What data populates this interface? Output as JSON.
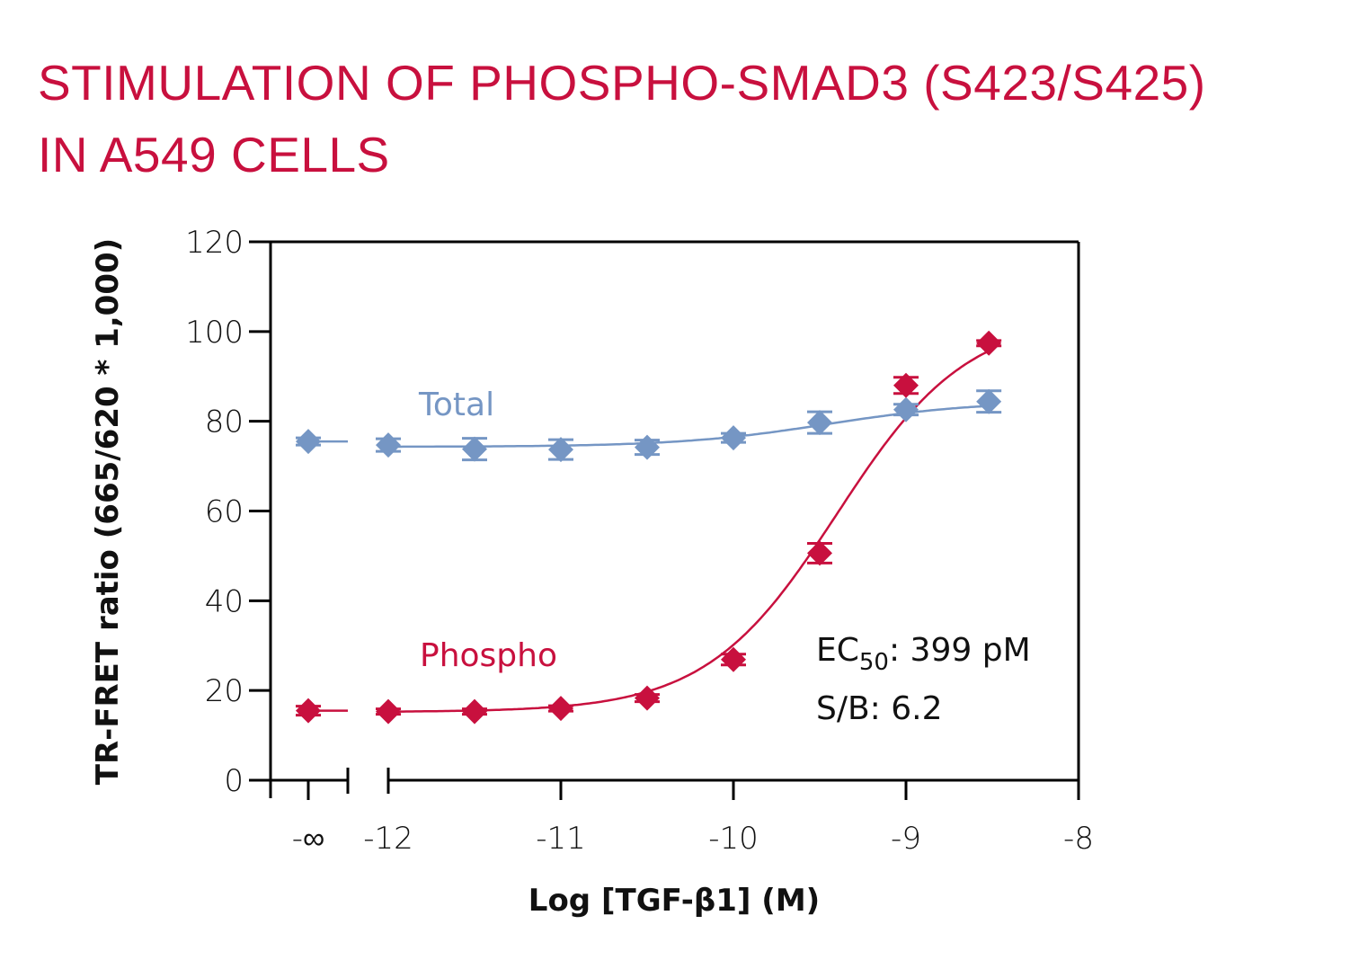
{
  "title": {
    "line1": "STIMULATION OF PHOSPHO-SMAD3 (S423/S425)",
    "line2": "IN A549 CELLS"
  },
  "colors": {
    "title": "#c8103e",
    "phospho": "#c8103e",
    "total": "#7596c4",
    "axis": "#000000"
  },
  "chart_data": {
    "type": "scatter",
    "title": "STIMULATION OF PHOSPHO-SMAD3 (S423/S425) IN A549 CELLS",
    "xlabel": "Log [TGF-β1] (M)",
    "ylabel": "TR-FRET ratio (665/620 * 1,000)",
    "xlim": [
      -12,
      -8
    ],
    "ylim": [
      0,
      120
    ],
    "x_ticks": [
      "-12",
      "-11",
      "-10",
      "-9",
      "-8"
    ],
    "x_tick_values": [
      -12,
      -11,
      -10,
      -9,
      -8
    ],
    "x_break_label": "-∞",
    "y_ticks": [
      "0",
      "20",
      "40",
      "60",
      "80",
      "100",
      "120"
    ],
    "y_tick_values": [
      0,
      20,
      40,
      60,
      80,
      100,
      120
    ],
    "grid": false,
    "series": [
      {
        "name": "Total",
        "label": "Total",
        "color": "#7596c4",
        "zero_dose_value": 75.5,
        "zero_dose_error": 0.8,
        "x": [
          -12,
          -11.5,
          -11,
          -10.5,
          -10,
          -9.5,
          -9,
          -8.52
        ],
        "values": [
          74.7,
          73.8,
          73.7,
          74.2,
          76.3,
          79.7,
          82.6,
          84.4
        ],
        "errors": [
          1.4,
          2.4,
          2.2,
          1.6,
          1.0,
          2.4,
          1.2,
          2.4
        ],
        "fit": {
          "bottom": 74.3,
          "top": 84.5,
          "logEC50": -9.45,
          "hill": 1.0
        }
      },
      {
        "name": "Phospho",
        "label": "Phospho",
        "color": "#c8103e",
        "zero_dose_value": 15.5,
        "zero_dose_error": 1.0,
        "x": [
          -12,
          -11.5,
          -11,
          -10.5,
          -10,
          -9.5,
          -9,
          -8.52
        ],
        "values": [
          15.3,
          15.3,
          16.0,
          18.3,
          26.9,
          50.6,
          88.0,
          97.4
        ],
        "errors": [
          0.6,
          0.6,
          0.6,
          0.8,
          1.2,
          2.2,
          1.8,
          0.6
        ],
        "fit": {
          "bottom": 15.2,
          "top": 103.5,
          "logEC50": -9.4,
          "hill": 1.15
        }
      }
    ],
    "annotations": [
      {
        "text_main": "EC",
        "text_sub": "50",
        "text_rest": ": 399 pM"
      },
      {
        "text": "S/B: 6.2"
      }
    ]
  },
  "annotations": {
    "ec50_main": "EC",
    "ec50_sub": "50",
    "ec50_rest": ": 399 pM",
    "sb": "S/B: 6.2"
  }
}
